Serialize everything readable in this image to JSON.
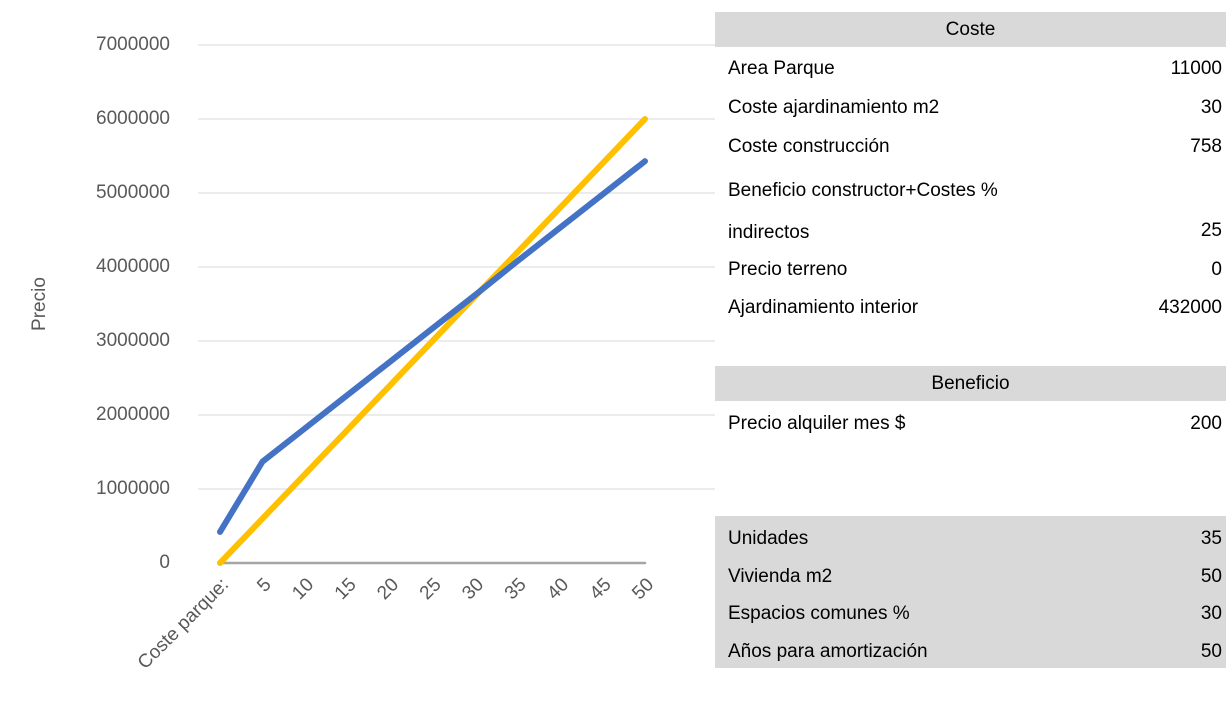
{
  "chart_data": {
    "type": "line",
    "y_label": "Precio",
    "categories": [
      "Coste parque:",
      "5",
      "10",
      "15",
      "20",
      "25",
      "30",
      "35",
      "40",
      "45",
      "50"
    ],
    "series": [
      {
        "color": "#4472c4",
        "values": [
          420000,
          1370000,
          1820000,
          2270000,
          2720000,
          3170000,
          3620000,
          4080000,
          4530000,
          4980000,
          5430000
        ]
      },
      {
        "color": "#ffc000",
        "values": [
          0,
          600000,
          1200000,
          1800000,
          2400000,
          3000000,
          3600000,
          4200000,
          4800000,
          5400000,
          6000000
        ]
      },
      {
        "color": "#a5a5a5",
        "values": [
          0,
          0,
          0,
          0,
          0,
          0,
          0,
          0,
          0,
          0,
          0
        ]
      }
    ],
    "ylim": [
      0,
      7000000
    ],
    "yticks": [
      0,
      1000000,
      2000000,
      3000000,
      4000000,
      5000000,
      6000000,
      7000000
    ],
    "grid": true
  },
  "sections": [
    {
      "header": "Coste",
      "rows": [
        [
          "Area Parque",
          11000
        ],
        [
          "Coste ajardinamiento m2",
          30
        ],
        [
          "Coste construcción",
          758
        ],
        [
          "Beneficio constructor+Costes % indirectos",
          25
        ],
        [
          "Precio terreno",
          0
        ],
        [
          "Ajardinamiento interior",
          432000
        ]
      ]
    },
    {
      "header": "Beneficio",
      "rows": [
        [
          "Precio alquiler mes $",
          200
        ]
      ]
    },
    {
      "rows": [
        [
          "Unidades",
          35
        ],
        [
          "Vivienda m2",
          50
        ],
        [
          "Espacios comunes %",
          30
        ],
        [
          "Años para amortización",
          50
        ]
      ]
    }
  ]
}
